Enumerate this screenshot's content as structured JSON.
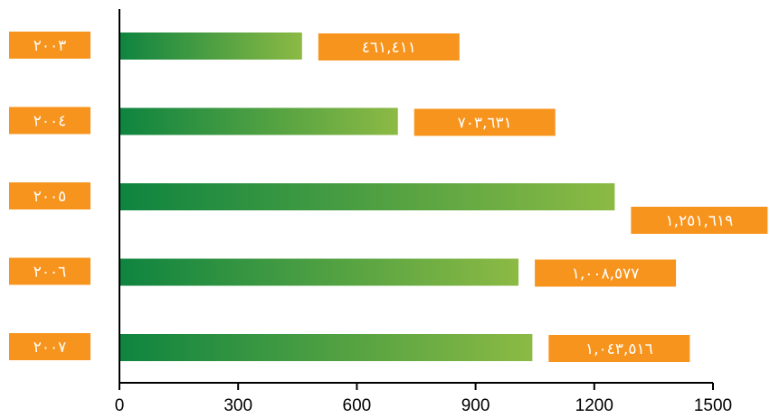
{
  "chart_data": {
    "type": "bar",
    "orientation": "horizontal",
    "categories": [
      "٢٠٠٣",
      "٢٠٠٤",
      "٢٠٠٥",
      "٢٠٠٦",
      "٢٠٠٧"
    ],
    "values": [
      461.411,
      703.631,
      1251.619,
      1008.577,
      1043.516
    ],
    "value_labels": [
      "٤٦١,٤١١",
      "٧٠٣,٦٣١",
      "١,٢٥١,٦١٩",
      "١,٠٠٨,٥٧٧",
      "١,٠٤٣,٥١٦"
    ],
    "xticks": [
      "0",
      "300",
      "600",
      "900",
      "1200",
      "1500"
    ],
    "xtick_values": [
      0,
      300,
      600,
      900,
      1200,
      1500
    ],
    "xlim": [
      0,
      1500
    ],
    "title": "",
    "xlabel": "",
    "ylabel": "",
    "grid": false,
    "colors": {
      "bar_start": "#0e8440",
      "bar_end": "#8cba44",
      "label_box": "#f7941d",
      "label_text": "#ffffff",
      "axis": "#000000"
    }
  }
}
